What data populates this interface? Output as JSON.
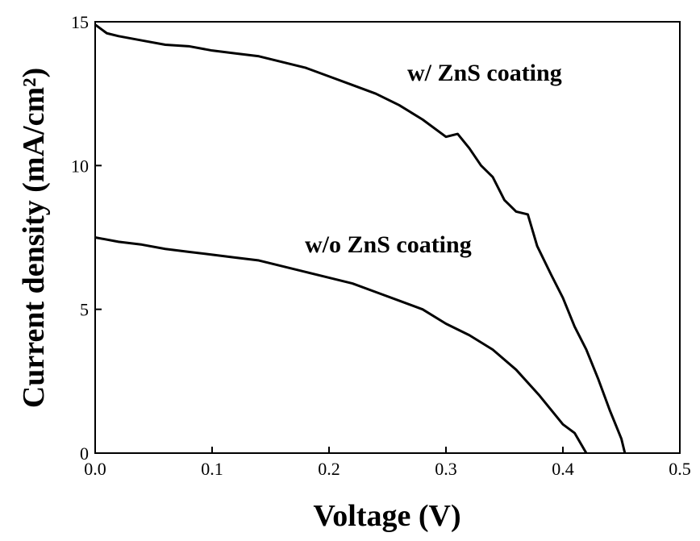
{
  "chart_data": {
    "type": "line",
    "xlabel": "Voltage (V)",
    "ylabel": "Current density (mA/cm²)",
    "xlim": [
      0,
      0.5
    ],
    "xticks": [
      {
        "value": 0,
        "label": "0.0"
      },
      0.1,
      0.2,
      0.3,
      0.4,
      {
        "value": 0.5,
        "label": "0.5"
      }
    ],
    "ylim": [
      0,
      15
    ],
    "yticks": [
      0,
      5,
      10,
      15
    ],
    "series": [
      {
        "name": "w/ ZnS coating",
        "color": "#000000",
        "x": [
          0,
          0.01,
          0.02,
          0.04,
          0.06,
          0.08,
          0.1,
          0.12,
          0.14,
          0.16,
          0.18,
          0.2,
          0.22,
          0.24,
          0.26,
          0.28,
          0.3,
          0.31,
          0.32,
          0.33,
          0.34,
          0.35,
          0.36,
          0.37,
          0.378,
          0.39,
          0.4,
          0.41,
          0.42,
          0.43,
          0.44,
          0.45,
          0.453
        ],
        "values": [
          14.9,
          14.6,
          14.5,
          14.35,
          14.2,
          14.15,
          14.0,
          13.9,
          13.8,
          13.6,
          13.4,
          13.1,
          12.8,
          12.5,
          12.1,
          11.6,
          11.0,
          11.1,
          10.6,
          10.0,
          9.6,
          8.8,
          8.4,
          8.3,
          7.2,
          6.2,
          5.4,
          4.4,
          3.6,
          2.6,
          1.5,
          0.5,
          0
        ]
      },
      {
        "name": "w/o ZnS coating",
        "color": "#000000",
        "x": [
          0,
          0.02,
          0.04,
          0.06,
          0.08,
          0.1,
          0.12,
          0.14,
          0.16,
          0.18,
          0.2,
          0.22,
          0.24,
          0.26,
          0.28,
          0.3,
          0.32,
          0.34,
          0.36,
          0.38,
          0.4,
          0.41,
          0.42
        ],
        "values": [
          7.5,
          7.35,
          7.25,
          7.1,
          7.0,
          6.9,
          6.8,
          6.7,
          6.5,
          6.3,
          6.1,
          5.9,
          5.6,
          5.3,
          5.0,
          4.5,
          4.1,
          3.6,
          2.9,
          2.0,
          1.0,
          0.7,
          0
        ]
      }
    ]
  }
}
